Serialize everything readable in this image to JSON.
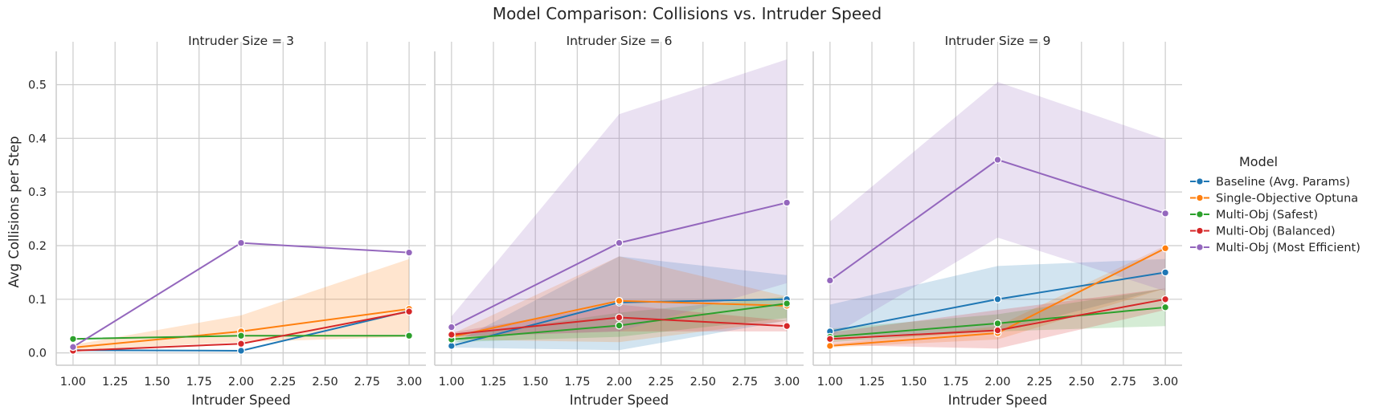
{
  "chart_data": {
    "type": "line",
    "title": "Model Comparison: Collisions vs. Intruder Speed",
    "xlabel": "Intruder Speed",
    "ylabel": "Avg Collisions per Step",
    "xlim": [
      0.9,
      3.1
    ],
    "ylim": [
      -0.023,
      0.58
    ],
    "xticks": [
      "1.00",
      "1.25",
      "1.50",
      "1.75",
      "2.00",
      "2.25",
      "2.50",
      "2.75",
      "3.00"
    ],
    "yticks": [
      "0.0",
      "0.1",
      "0.2",
      "0.3",
      "0.4",
      "0.5"
    ],
    "grid": true,
    "legend": {
      "title": "Model",
      "placement": "right",
      "entries": [
        "Baseline (Avg. Params)",
        "Single-Objective Optuna",
        "Multi-Obj (Safest)",
        "Multi-Obj (Balanced)",
        "Multi-Obj (Most Efficient)"
      ]
    },
    "colors": [
      "#1f77b4",
      "#ff7f0e",
      "#2ca02c",
      "#d62728",
      "#9467bd"
    ],
    "x": [
      1.0,
      2.0,
      3.0
    ],
    "panels": [
      {
        "title": "Intruder Size = 3",
        "series": [
          {
            "name": "Baseline (Avg. Params)",
            "values": [
              0.005,
              0.004,
              0.078
            ],
            "lower": null,
            "upper": null
          },
          {
            "name": "Single-Objective Optuna",
            "values": [
              0.01,
              0.04,
              0.082
            ],
            "lower": [
              0.005,
              0.02,
              0.03
            ],
            "upper": [
              0.015,
              0.07,
              0.175
            ]
          },
          {
            "name": "Multi-Obj (Safest)",
            "values": [
              0.026,
              0.032,
              0.032
            ],
            "lower": null,
            "upper": null
          },
          {
            "name": "Multi-Obj (Balanced)",
            "values": [
              0.004,
              0.017,
              0.077
            ],
            "lower": null,
            "upper": null
          },
          {
            "name": "Multi-Obj (Most Efficient)",
            "values": [
              0.011,
              0.205,
              0.187
            ],
            "lower": null,
            "upper": null
          }
        ]
      },
      {
        "title": "Intruder Size = 6",
        "series": [
          {
            "name": "Baseline (Avg. Params)",
            "values": [
              0.013,
              0.094,
              0.1
            ],
            "lower": [
              0.01,
              0.005,
              0.06
            ],
            "upper": [
              0.016,
              0.18,
              0.145
            ]
          },
          {
            "name": "Single-Objective Optuna",
            "values": [
              0.03,
              0.097,
              0.088
            ],
            "lower": [
              0.025,
              0.02,
              0.06
            ],
            "upper": [
              0.035,
              0.18,
              0.105
            ]
          },
          {
            "name": "Multi-Obj (Safest)",
            "values": [
              0.025,
              0.051,
              0.092
            ],
            "lower": [
              0.02,
              0.03,
              0.065
            ],
            "upper": [
              0.03,
              0.075,
              0.105
            ]
          },
          {
            "name": "Multi-Obj (Balanced)",
            "values": [
              0.034,
              0.066,
              0.05
            ],
            "lower": [
              0.03,
              0.04,
              0.04
            ],
            "upper": [
              0.038,
              0.09,
              0.06
            ]
          },
          {
            "name": "Multi-Obj (Most Efficient)",
            "values": [
              0.048,
              0.205,
              0.28
            ],
            "lower": [
              0.03,
              0.04,
              0.13
            ],
            "upper": [
              0.068,
              0.445,
              0.547
            ]
          }
        ]
      },
      {
        "title": "Intruder Size = 9",
        "series": [
          {
            "name": "Baseline (Avg. Params)",
            "values": [
              0.04,
              0.1,
              0.15
            ],
            "lower": [
              0.03,
              0.04,
              0.12
            ],
            "upper": [
              0.09,
              0.162,
              0.175
            ]
          },
          {
            "name": "Single-Objective Optuna",
            "values": [
              0.013,
              0.037,
              0.195
            ],
            "lower": [
              0.01,
              0.025,
              0.12
            ],
            "upper": [
              0.016,
              0.05,
              0.2
            ]
          },
          {
            "name": "Multi-Obj (Safest)",
            "values": [
              0.03,
              0.055,
              0.085
            ],
            "lower": [
              0.02,
              0.04,
              0.05
            ],
            "upper": [
              0.045,
              0.072,
              0.12
            ]
          },
          {
            "name": "Multi-Obj (Balanced)",
            "values": [
              0.026,
              0.042,
              0.1
            ],
            "lower": [
              0.015,
              0.008,
              0.08
            ],
            "upper": [
              0.038,
              0.08,
              0.12
            ]
          },
          {
            "name": "Multi-Obj (Most Efficient)",
            "values": [
              0.135,
              0.36,
              0.26
            ],
            "lower": [
              0.03,
              0.215,
              0.115
            ],
            "upper": [
              0.245,
              0.505,
              0.398
            ]
          }
        ]
      }
    ]
  }
}
